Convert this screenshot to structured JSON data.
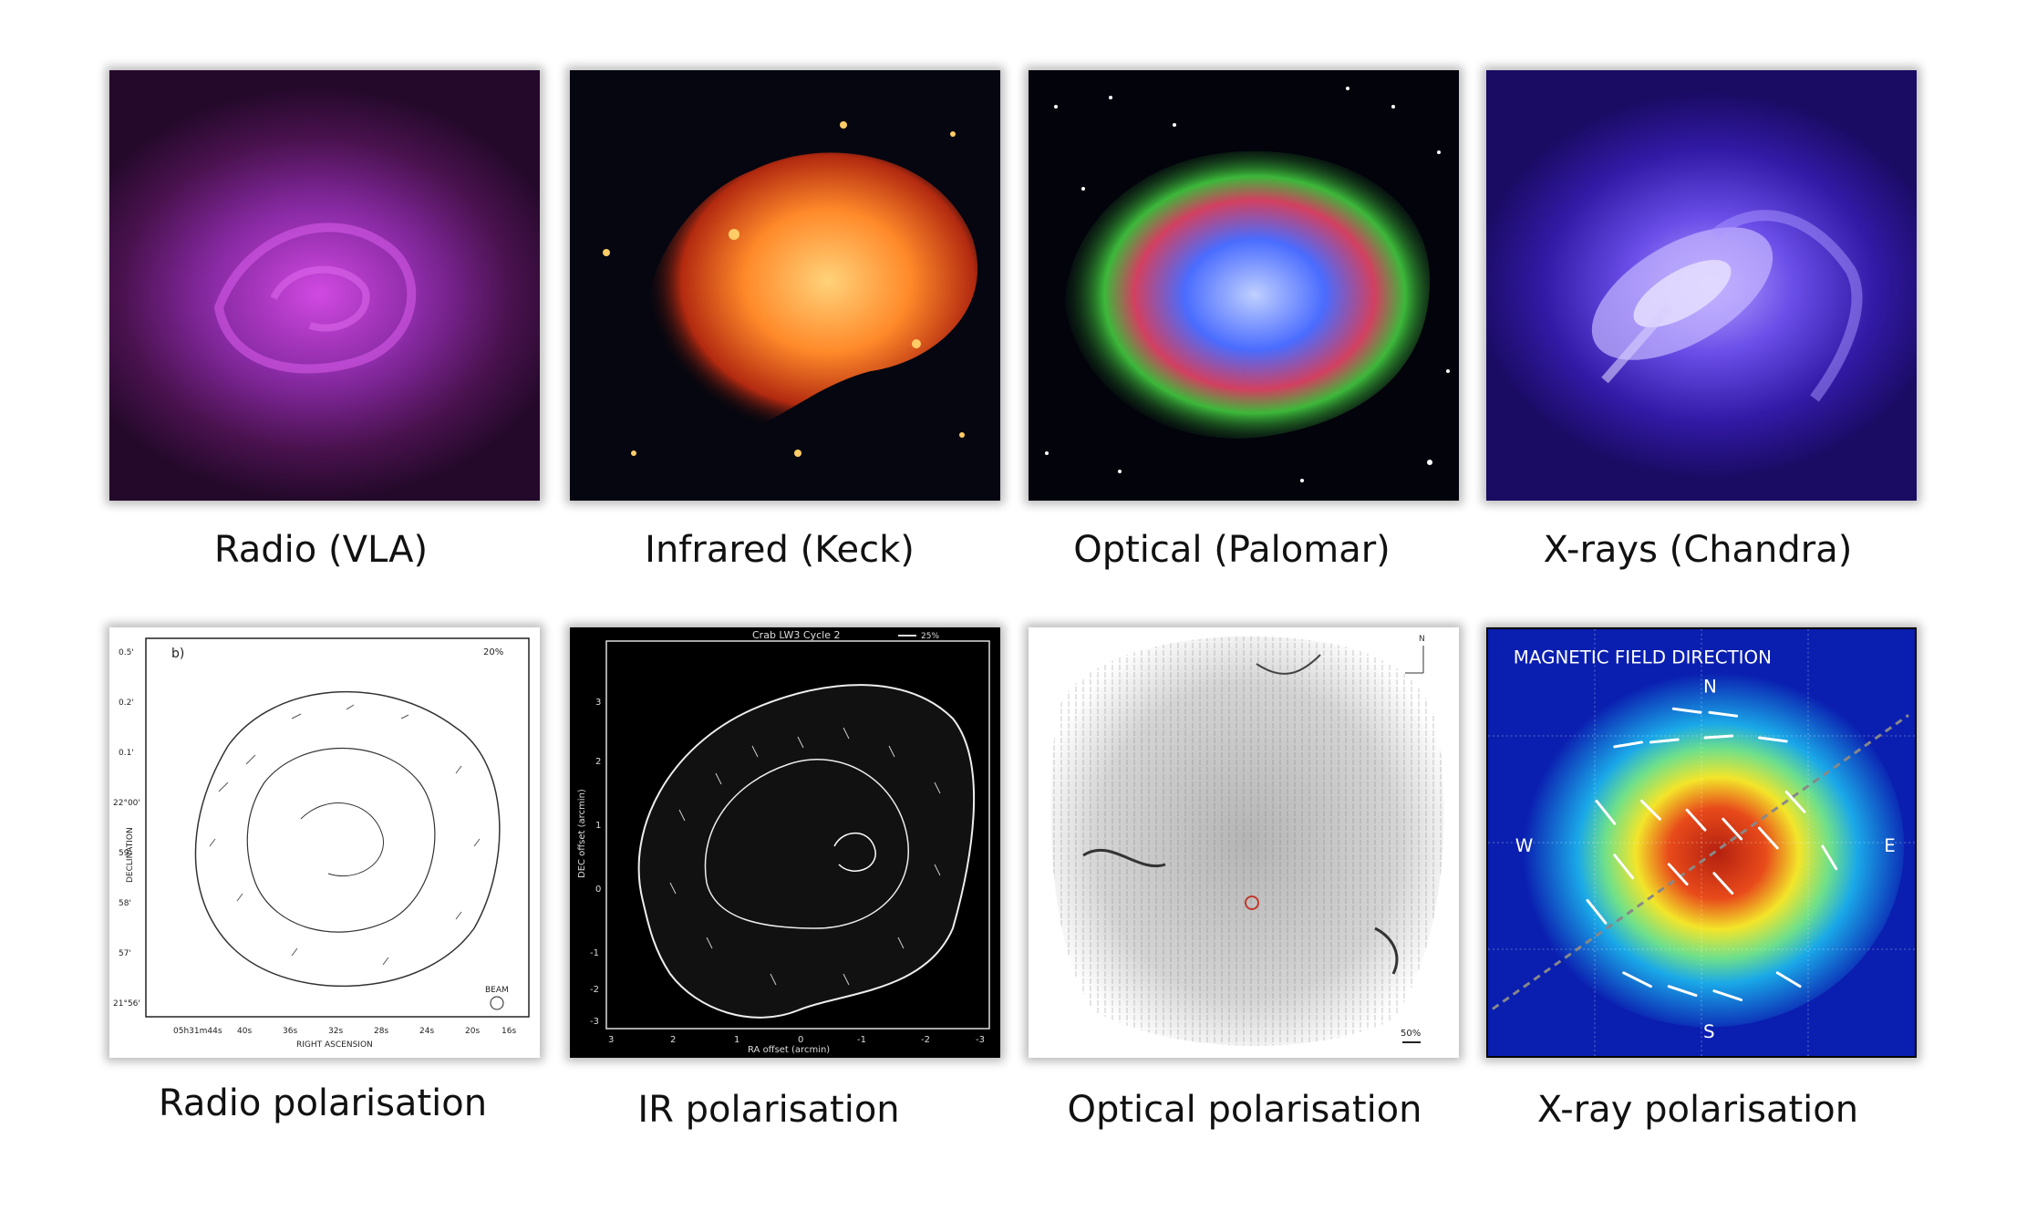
{
  "row1": [
    {
      "caption": "Radio (VLA)"
    },
    {
      "caption": "Infrared (Keck)"
    },
    {
      "caption": "Optical (Palomar)"
    },
    {
      "caption": "X-rays (Chandra)"
    }
  ],
  "row2": [
    {
      "caption": "Radio polarisation"
    },
    {
      "caption": "IR polarisation"
    },
    {
      "caption": "Optical polarisation"
    },
    {
      "caption": "X-ray polarisation"
    }
  ],
  "radio_pol": {
    "panel_label": "b)",
    "scale": "20%",
    "beam": "BEAM",
    "y_axis": "DECLINATION",
    "x_axis": "RIGHT ASCENSION",
    "y_ticks": [
      "0.5'",
      "0.2'",
      "0.1'",
      "22°00'",
      "59'",
      "58'",
      "57'",
      "21°56'"
    ],
    "x_ticks": [
      "05h31m44s",
      "40s",
      "36s",
      "32s",
      "28s",
      "24s",
      "20s",
      "16s"
    ]
  },
  "ir_pol": {
    "title": "Crab LW3 Cycle 2",
    "scale": "25%",
    "x_axis": "RA offset (arcmin)",
    "y_axis": "DEC offset (arcmin)",
    "x_ticks": [
      "3",
      "2",
      "1",
      "0",
      "-1",
      "-2",
      "-3"
    ],
    "y_ticks": [
      "3",
      "2",
      "1",
      "0",
      "-1",
      "-2",
      "-3"
    ]
  },
  "opt_pol": {
    "north": "N",
    "scale": "50%"
  },
  "xray_pol": {
    "title": "MAGNETIC FIELD DIRECTION",
    "north": "N",
    "south": "S",
    "west": "W",
    "east": "E"
  },
  "colors": {
    "radio": "#c63ed9",
    "infrared": "#ff8c2a",
    "optical_outer": "#3cb83a",
    "optical_core": "#4a6cff",
    "xray": "#7a5cf0",
    "xpol_bg": "#0a1fb0"
  }
}
